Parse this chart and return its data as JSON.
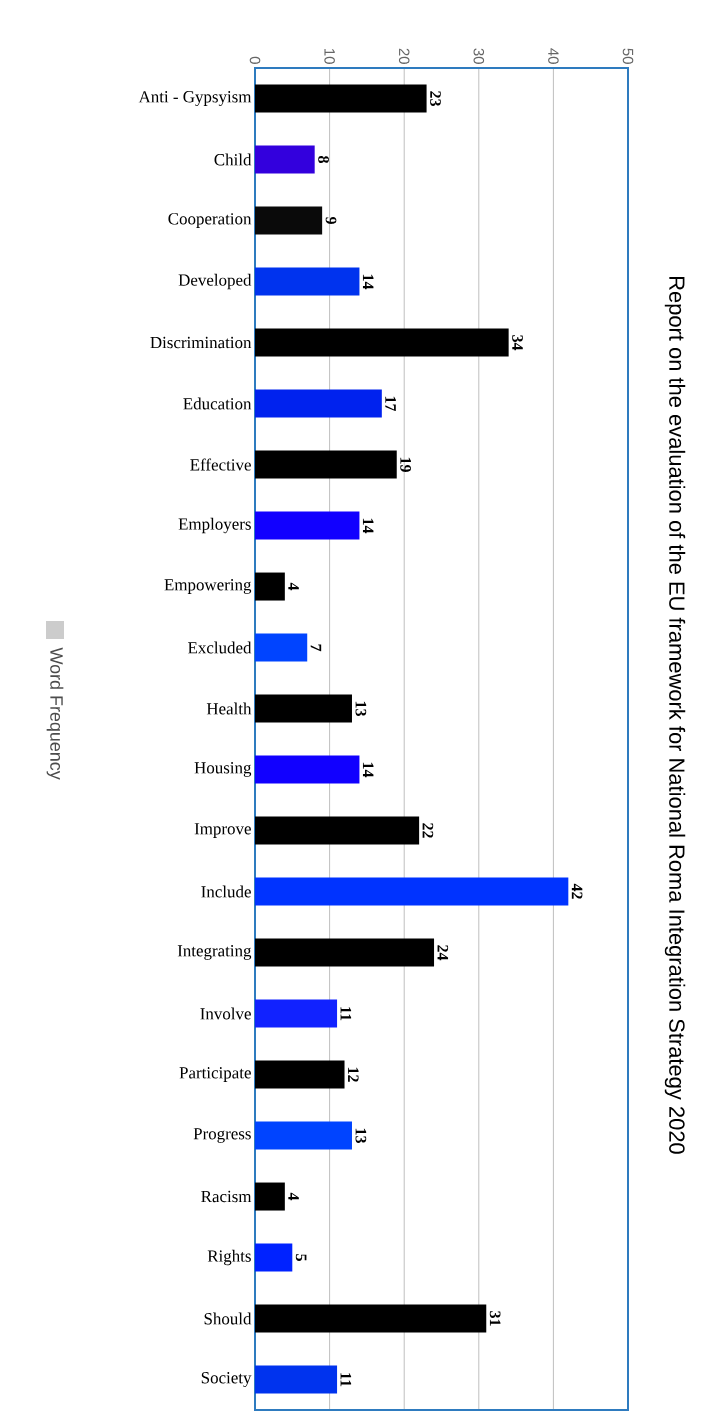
{
  "chart_data": {
    "type": "bar",
    "orientation": "horizontal",
    "title": "Report on the evaluation of the EU framework for National Roma Integration Strategy 2020",
    "categories": [
      "Anti - Gypsyism",
      "Child",
      "Cooperation",
      "Developed",
      "Discrimination",
      "Education",
      "Effective",
      "Employers",
      "Empowering",
      "Excluded",
      "Health",
      "Housing",
      "Improve",
      "Include",
      "Integrating",
      "Involve",
      "Participate",
      "Progress",
      "Racism",
      "Rights",
      "Should",
      "Society"
    ],
    "series": [
      {
        "name": "Word Frequency",
        "values": [
          23,
          8,
          9,
          14,
          34,
          17,
          19,
          14,
          4,
          7,
          13,
          14,
          22,
          42,
          24,
          11,
          12,
          13,
          4,
          5,
          31,
          11
        ]
      }
    ],
    "colors": [
      "#000000",
      "#3300dd",
      "#0a0a0a",
      "#0033ee",
      "#000000",
      "#0022ee",
      "#000000",
      "#1100ff",
      "#000000",
      "#0044ff",
      "#000000",
      "#1100ff",
      "#000000",
      "#0033ff",
      "#000000",
      "#1122ff",
      "#000000",
      "#0044ff",
      "#000000",
      "#0022ff",
      "#000000",
      "#0033ee"
    ],
    "xlim": [
      0,
      50
    ],
    "xticks": [
      0,
      10,
      20,
      30,
      40,
      50
    ],
    "grid": "x",
    "legend": "left",
    "data_labels": true
  }
}
